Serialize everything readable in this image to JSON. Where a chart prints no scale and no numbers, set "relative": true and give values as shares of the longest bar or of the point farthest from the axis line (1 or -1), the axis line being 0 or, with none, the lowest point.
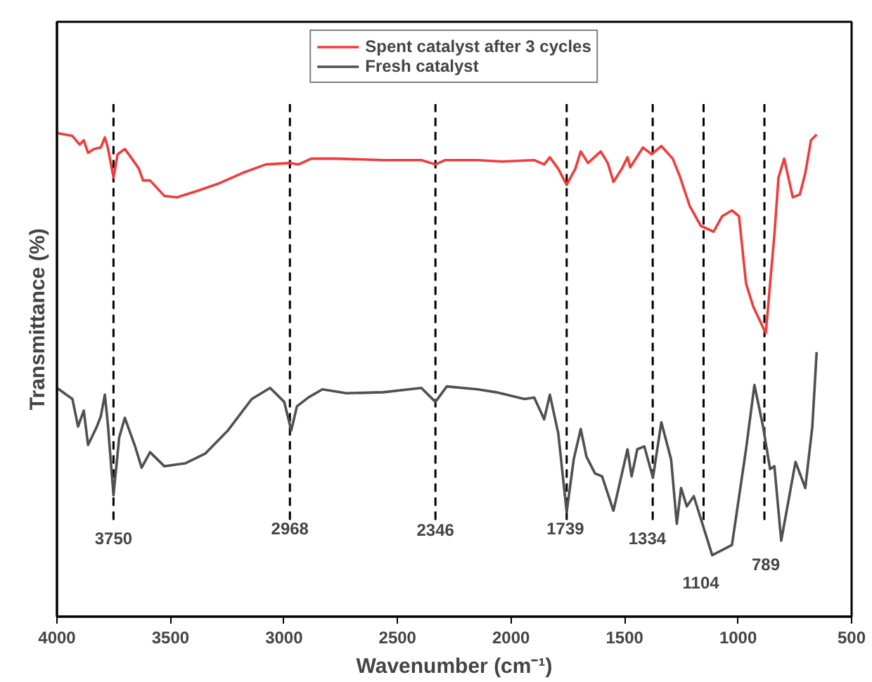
{
  "chart_data": {
    "type": "line",
    "relative": true,
    "xlabel": "Wavenumber (cm⁻¹)",
    "ylabel": "Transmittance (%)",
    "xlim": [
      4000,
      500
    ],
    "xticks": [
      4000,
      3500,
      3000,
      2500,
      2000,
      1500,
      1000,
      500
    ],
    "legend": "top",
    "grid": false,
    "line_style": "solid",
    "marker": "none",
    "series": [
      {
        "name": "Spent catalyst after 3 cycles",
        "color": "#f03c3c",
        "x": [
          4000,
          3932,
          3900,
          3882,
          3863,
          3838,
          3807,
          3789,
          3776,
          3751,
          3733,
          3701,
          3670,
          3639,
          3621,
          3590,
          3527,
          3471,
          3391,
          3285,
          3185,
          3080,
          2974,
          2936,
          2880,
          2769,
          2563,
          2395,
          2333,
          2290,
          2147,
          2041,
          1898,
          1854,
          1829,
          1792,
          1755,
          1717,
          1693,
          1661,
          1605,
          1574,
          1549,
          1512,
          1487,
          1475,
          1419,
          1381,
          1338,
          1288,
          1257,
          1213,
          1164,
          1108,
          1070,
          1027,
          996,
          965,
          934,
          878,
          840,
          822,
          797,
          759,
          728,
          704,
          679,
          654
        ],
        "values": [
          1.0,
          0.994,
          0.976,
          0.985,
          0.959,
          0.967,
          0.97,
          0.991,
          0.97,
          0.908,
          0.956,
          0.967,
          0.947,
          0.926,
          0.902,
          0.902,
          0.87,
          0.867,
          0.879,
          0.896,
          0.917,
          0.935,
          0.938,
          0.935,
          0.947,
          0.947,
          0.944,
          0.944,
          0.935,
          0.944,
          0.944,
          0.941,
          0.944,
          0.935,
          0.95,
          0.926,
          0.893,
          0.926,
          0.962,
          0.938,
          0.962,
          0.938,
          0.899,
          0.926,
          0.95,
          0.929,
          0.97,
          0.956,
          0.973,
          0.947,
          0.911,
          0.849,
          0.808,
          0.796,
          0.828,
          0.84,
          0.828,
          0.689,
          0.642,
          0.586,
          0.79,
          0.908,
          0.947,
          0.867,
          0.873,
          0.917,
          0.985,
          0.997
        ]
      },
      {
        "name": "Fresh catalyst",
        "color": "#505050",
        "x": [
          4000,
          3932,
          3907,
          3882,
          3863,
          3826,
          3807,
          3789,
          3776,
          3751,
          3726,
          3701,
          3658,
          3627,
          3590,
          3527,
          3434,
          3347,
          3247,
          3142,
          3061,
          2999,
          2968,
          2943,
          2893,
          2831,
          2725,
          2563,
          2395,
          2333,
          2283,
          2147,
          2066,
          1941,
          1898,
          1854,
          1829,
          1792,
          1755,
          1724,
          1693,
          1668,
          1630,
          1599,
          1549,
          1487,
          1469,
          1444,
          1413,
          1375,
          1338,
          1295,
          1270,
          1251,
          1226,
          1195,
          1114,
          1027,
          965,
          928,
          890,
          859,
          840,
          810,
          747,
          704,
          673,
          654
        ],
        "values": [
          0.473,
          0.45,
          0.393,
          0.426,
          0.355,
          0.391,
          0.414,
          0.459,
          0.399,
          0.251,
          0.37,
          0.411,
          0.355,
          0.308,
          0.34,
          0.311,
          0.317,
          0.337,
          0.385,
          0.45,
          0.473,
          0.444,
          0.385,
          0.435,
          0.453,
          0.47,
          0.462,
          0.464,
          0.473,
          0.444,
          0.476,
          0.47,
          0.464,
          0.45,
          0.453,
          0.408,
          0.459,
          0.379,
          0.216,
          0.325,
          0.388,
          0.331,
          0.296,
          0.29,
          0.219,
          0.346,
          0.29,
          0.346,
          0.352,
          0.287,
          0.402,
          0.325,
          0.192,
          0.266,
          0.228,
          0.249,
          0.127,
          0.148,
          0.346,
          0.479,
          0.393,
          0.305,
          0.311,
          0.157,
          0.32,
          0.266,
          0.393,
          0.547
        ]
      }
    ],
    "ref_lines": [
      {
        "axis": "x",
        "value": 3751,
        "color": "#000000",
        "line_style": "dashed"
      },
      {
        "axis": "x",
        "value": 2974,
        "color": "#000000",
        "line_style": "dashed"
      },
      {
        "axis": "x",
        "value": 2333,
        "color": "#000000",
        "line_style": "dashed"
      },
      {
        "axis": "x",
        "value": 1755,
        "color": "#000000",
        "line_style": "dashed"
      },
      {
        "axis": "x",
        "value": 1376,
        "color": "#000000",
        "line_style": "dashed"
      },
      {
        "axis": "x",
        "value": 1152,
        "color": "#000000",
        "line_style": "dashed"
      },
      {
        "axis": "x",
        "value": 884,
        "color": "#000000",
        "line_style": "dashed"
      }
    ],
    "annotations": [
      {
        "text": "3750",
        "x": 3751,
        "y": 0.163
      },
      {
        "text": "2968",
        "x": 2974,
        "y": 0.183
      },
      {
        "text": "2346",
        "x": 2333,
        "y": 0.18
      },
      {
        "text": "1739",
        "x": 1761,
        "y": 0.183
      },
      {
        "text": "1334",
        "x": 1400,
        "y": 0.163
      },
      {
        "text": "1104",
        "x": 1164,
        "y": 0.071
      },
      {
        "text": "789",
        "x": 878,
        "y": 0.109
      }
    ]
  }
}
